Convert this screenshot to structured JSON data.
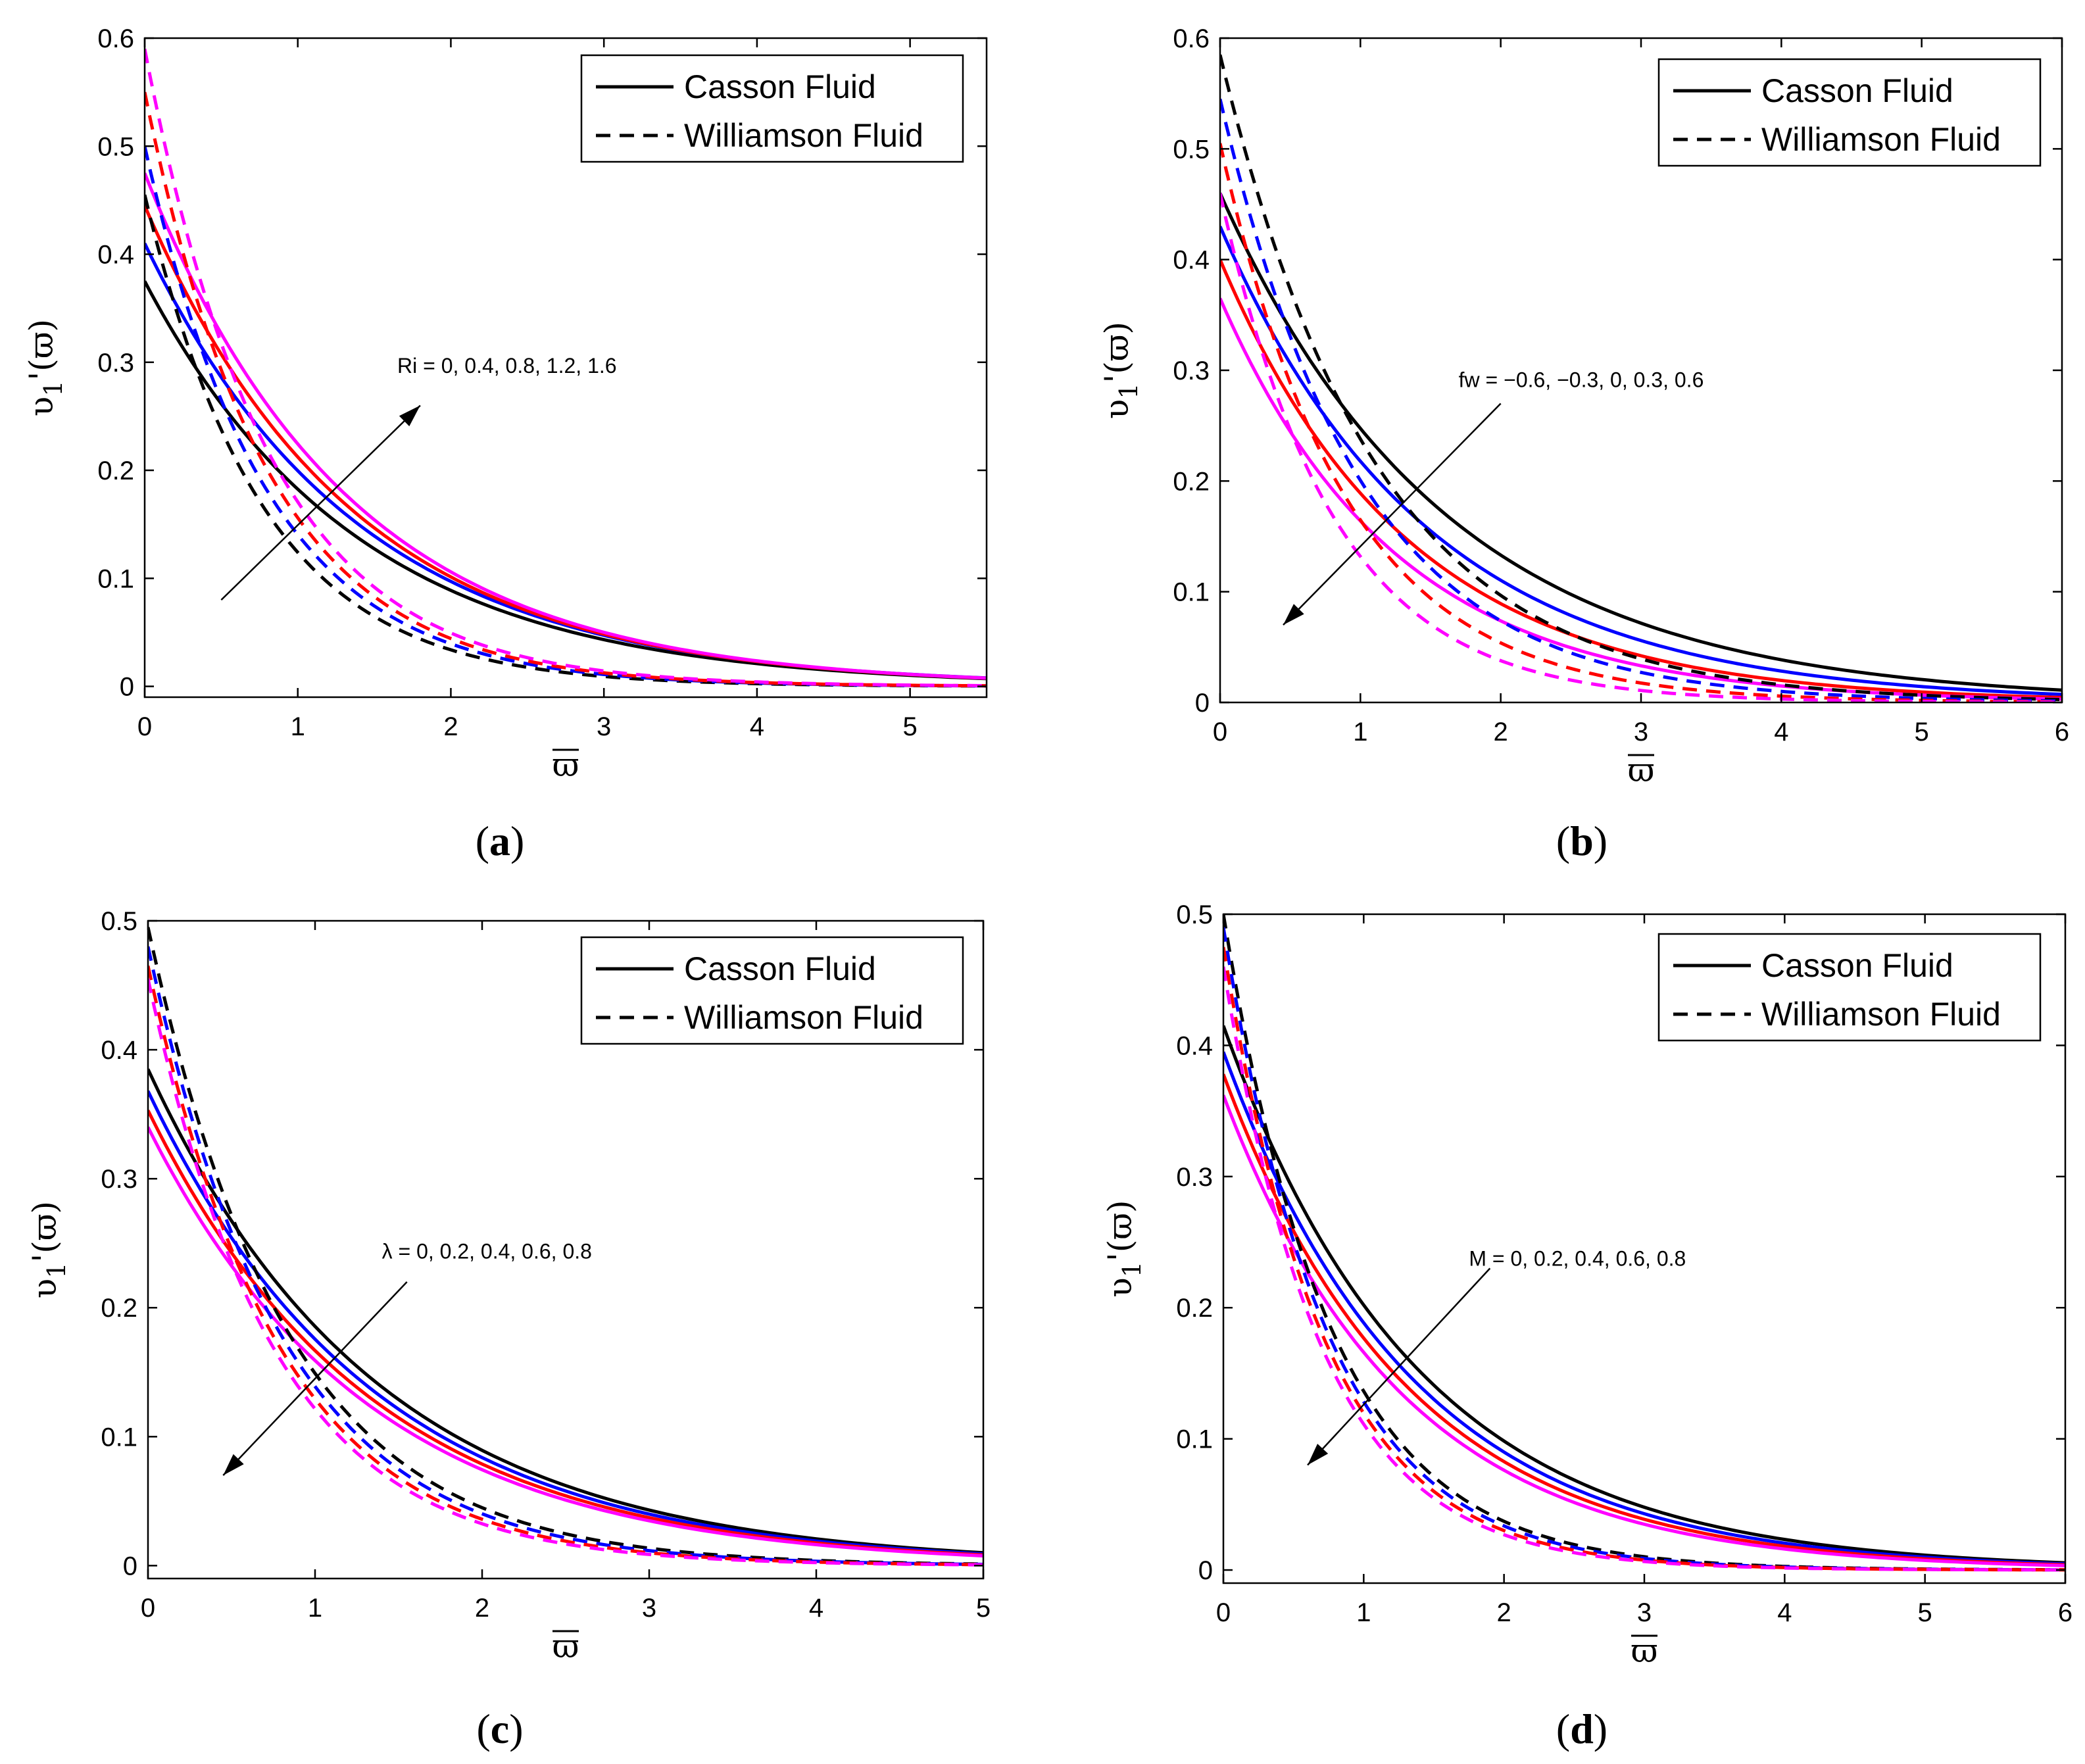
{
  "figure": {
    "colors": [
      "#000000",
      "#0000ff",
      "#ff0000",
      "#ff00ff"
    ],
    "legend_entries": [
      "Casson Fluid",
      "Williamson Fluid"
    ]
  },
  "chart_data": [
    {
      "type": "line",
      "panel_label": "a",
      "caption": "(a)",
      "xlabel": "ϖ",
      "ylabel": "υ1'(ϖ)",
      "xlim": [
        0,
        5.5
      ],
      "ylim": [
        -0.01,
        0.6
      ],
      "xticks": [
        0,
        1,
        2,
        3,
        4,
        5
      ],
      "yticks": [
        0,
        0.1,
        0.2,
        0.3,
        0.4,
        0.5,
        0.6
      ],
      "legend": {
        "position": "top-right",
        "entries": [
          "Casson Fluid",
          "Williamson Fluid"
        ]
      },
      "annotation": {
        "text": "Ri = 0, 0.4, 0.8, 1.2, 1.6",
        "arrow_direction": "up-right",
        "from": [
          0.5,
          0.08
        ],
        "to": [
          1.8,
          0.26
        ]
      },
      "parameter": "Ri",
      "parameter_values": [
        0,
        0.4,
        0.8,
        1.2,
        1.6
      ],
      "series": [
        {
          "name": "Casson Fluid, Ri = 0",
          "fluid": "Casson",
          "color": "#000000",
          "dashed": false,
          "v0": 0.375,
          "k": 0.72,
          "xmax": 5.5
        },
        {
          "name": "Casson Fluid, Ri = 0.4",
          "fluid": "Casson",
          "color": "#0000ff",
          "dashed": false,
          "v0": 0.41,
          "k": 0.72,
          "xmax": 5.5
        },
        {
          "name": "Casson Fluid, Ri = 0.8",
          "fluid": "Casson",
          "color": "#ff0000",
          "dashed": false,
          "v0": 0.445,
          "k": 0.74,
          "xmax": 5.5
        },
        {
          "name": "Casson Fluid, Ri = 1.2",
          "fluid": "Casson",
          "color": "#ff00ff",
          "dashed": false,
          "v0": 0.475,
          "k": 0.75,
          "xmax": 5.5
        },
        {
          "name": "Williamson Fluid, Ri = 0",
          "fluid": "Williamson",
          "color": "#000000",
          "dashed": true,
          "v0": 0.455,
          "k": 1.3,
          "xmax": 5.5
        },
        {
          "name": "Williamson Fluid, Ri = 0.4",
          "fluid": "Williamson",
          "color": "#0000ff",
          "dashed": true,
          "v0": 0.5,
          "k": 1.27,
          "xmax": 5.5
        },
        {
          "name": "Williamson Fluid, Ri = 0.8",
          "fluid": "Williamson",
          "color": "#ff0000",
          "dashed": true,
          "v0": 0.55,
          "k": 1.26,
          "xmax": 5.5
        },
        {
          "name": "Williamson Fluid, Ri = 1.2",
          "fluid": "Williamson",
          "color": "#ff00ff",
          "dashed": true,
          "v0": 0.59,
          "k": 1.24,
          "xmax": 5.5
        }
      ]
    },
    {
      "type": "line",
      "panel_label": "b",
      "caption": "(b)",
      "xlabel": "ϖ",
      "ylabel": "υ1'(ϖ)",
      "xlim": [
        0,
        6
      ],
      "ylim": [
        0,
        0.6
      ],
      "xticks": [
        0,
        1,
        2,
        3,
        4,
        5,
        6
      ],
      "yticks": [
        0,
        0.1,
        0.2,
        0.3,
        0.4,
        0.5,
        0.6
      ],
      "legend": {
        "position": "top-right",
        "entries": [
          "Casson Fluid",
          "Williamson Fluid"
        ]
      },
      "annotation": {
        "text": "fw = −0.6, −0.3, 0, 0.3, 0.6",
        "arrow_direction": "down-left",
        "from": [
          2.0,
          0.27
        ],
        "to": [
          0.45,
          0.07
        ]
      },
      "parameter": "fw",
      "parameter_values": [
        -0.6,
        -0.3,
        0,
        0.3,
        0.6
      ],
      "series": [
        {
          "name": "Casson Fluid, fw = -0.6",
          "fluid": "Casson",
          "color": "#000000",
          "dashed": false,
          "v0": 0.46,
          "k": 0.62,
          "xmax": 6
        },
        {
          "name": "Casson Fluid, fw = -0.3",
          "fluid": "Casson",
          "color": "#0000ff",
          "dashed": false,
          "v0": 0.43,
          "k": 0.68,
          "xmax": 6
        },
        {
          "name": "Casson Fluid, fw = 0",
          "fluid": "Casson",
          "color": "#ff0000",
          "dashed": false,
          "v0": 0.4,
          "k": 0.75,
          "xmax": 6
        },
        {
          "name": "Casson Fluid, fw = 0.3",
          "fluid": "Casson",
          "color": "#ff00ff",
          "dashed": false,
          "v0": 0.365,
          "k": 0.8,
          "xmax": 6
        },
        {
          "name": "Williamson Fluid, fw = -0.6",
          "fluid": "Williamson",
          "color": "#000000",
          "dashed": true,
          "v0": 0.585,
          "k": 0.9,
          "xmax": 6
        },
        {
          "name": "Williamson Fluid, fw = -0.3",
          "fluid": "Williamson",
          "color": "#0000ff",
          "dashed": true,
          "v0": 0.545,
          "k": 1.0,
          "xmax": 6
        },
        {
          "name": "Williamson Fluid, fw = 0",
          "fluid": "Williamson",
          "color": "#ff0000",
          "dashed": true,
          "v0": 0.505,
          "k": 1.12,
          "xmax": 6
        },
        {
          "name": "Williamson Fluid, fw = 0.3",
          "fluid": "Williamson",
          "color": "#ff00ff",
          "dashed": true,
          "v0": 0.46,
          "k": 1.25,
          "xmax": 6
        }
      ]
    },
    {
      "type": "line",
      "panel_label": "c",
      "caption": "(c)",
      "xlabel": "ϖ",
      "ylabel": "υ1'(ϖ)",
      "xlim": [
        0,
        5
      ],
      "ylim": [
        -0.01,
        0.5
      ],
      "xticks": [
        0,
        1,
        2,
        3,
        4,
        5
      ],
      "yticks": [
        0,
        0.1,
        0.2,
        0.3,
        0.4,
        0.5
      ],
      "legend": {
        "position": "top-right",
        "entries": [
          "Casson Fluid",
          "Williamson Fluid"
        ]
      },
      "annotation": {
        "text": "λ = 0, 0.2, 0.4, 0.6, 0.8",
        "arrow_direction": "down-left",
        "from": [
          1.55,
          0.22
        ],
        "to": [
          0.45,
          0.07
        ]
      },
      "parameter": "λ",
      "parameter_values": [
        0,
        0.2,
        0.4,
        0.6,
        0.8
      ],
      "series": [
        {
          "name": "Casson Fluid, λ = 0",
          "fluid": "Casson",
          "color": "#000000",
          "dashed": false,
          "v0": 0.385,
          "k": 0.73,
          "xmax": 5
        },
        {
          "name": "Casson Fluid, λ = 0.2",
          "fluid": "Casson",
          "color": "#0000ff",
          "dashed": false,
          "v0": 0.368,
          "k": 0.74,
          "xmax": 5
        },
        {
          "name": "Casson Fluid, λ = 0.4",
          "fluid": "Casson",
          "color": "#ff0000",
          "dashed": false,
          "v0": 0.353,
          "k": 0.75,
          "xmax": 5
        },
        {
          "name": "Casson Fluid, λ = 0.6",
          "fluid": "Casson",
          "color": "#ff00ff",
          "dashed": false,
          "v0": 0.34,
          "k": 0.76,
          "xmax": 5
        },
        {
          "name": "Williamson Fluid, λ = 0",
          "fluid": "Williamson",
          "color": "#000000",
          "dashed": true,
          "v0": 0.495,
          "k": 1.2,
          "xmax": 5
        },
        {
          "name": "Williamson Fluid, λ = 0.2",
          "fluid": "Williamson",
          "color": "#0000ff",
          "dashed": true,
          "v0": 0.48,
          "k": 1.24,
          "xmax": 5
        },
        {
          "name": "Williamson Fluid, λ = 0.4",
          "fluid": "Williamson",
          "color": "#ff0000",
          "dashed": true,
          "v0": 0.465,
          "k": 1.28,
          "xmax": 5
        },
        {
          "name": "Williamson Fluid, λ = 0.6",
          "fluid": "Williamson",
          "color": "#ff00ff",
          "dashed": true,
          "v0": 0.455,
          "k": 1.32,
          "xmax": 5
        }
      ]
    },
    {
      "type": "line",
      "panel_label": "d",
      "caption": "(d)",
      "xlabel": "ϖ",
      "ylabel": "υ1'(ϖ)",
      "xlim": [
        0,
        6
      ],
      "ylim": [
        -0.01,
        0.5
      ],
      "xticks": [
        0,
        1,
        2,
        3,
        4,
        5,
        6
      ],
      "yticks": [
        0,
        0.1,
        0.2,
        0.3,
        0.4,
        0.5
      ],
      "legend": {
        "position": "top-right",
        "entries": [
          "Casson Fluid",
          "Williamson Fluid"
        ]
      },
      "annotation": {
        "text": "M = 0, 0.2, 0.4, 0.6, 0.8",
        "arrow_direction": "down-left",
        "from": [
          1.9,
          0.23
        ],
        "to": [
          0.6,
          0.08
        ]
      },
      "parameter": "M",
      "parameter_values": [
        0,
        0.2,
        0.4,
        0.6,
        0.8
      ],
      "series": [
        {
          "name": "Casson Fluid, M = 0",
          "fluid": "Casson",
          "color": "#000000",
          "dashed": false,
          "v0": 0.415,
          "k": 0.72,
          "xmax": 6
        },
        {
          "name": "Casson Fluid, M = 0.2",
          "fluid": "Casson",
          "color": "#0000ff",
          "dashed": false,
          "v0": 0.395,
          "k": 0.74,
          "xmax": 6
        },
        {
          "name": "Casson Fluid, M = 0.4",
          "fluid": "Casson",
          "color": "#ff0000",
          "dashed": false,
          "v0": 0.378,
          "k": 0.76,
          "xmax": 6
        },
        {
          "name": "Casson Fluid, M = 0.6",
          "fluid": "Casson",
          "color": "#ff00ff",
          "dashed": false,
          "v0": 0.362,
          "k": 0.78,
          "xmax": 6
        },
        {
          "name": "Williamson Fluid, M = 0",
          "fluid": "Williamson",
          "color": "#000000",
          "dashed": true,
          "v0": 0.5,
          "k": 1.3,
          "xmax": 6
        },
        {
          "name": "Williamson Fluid, M = 0.2",
          "fluid": "Williamson",
          "color": "#0000ff",
          "dashed": true,
          "v0": 0.49,
          "k": 1.34,
          "xmax": 6
        },
        {
          "name": "Williamson Fluid, M = 0.4",
          "fluid": "Williamson",
          "color": "#ff0000",
          "dashed": true,
          "v0": 0.475,
          "k": 1.38,
          "xmax": 6
        },
        {
          "name": "Williamson Fluid, M = 0.6",
          "fluid": "Williamson",
          "color": "#ff00ff",
          "dashed": true,
          "v0": 0.46,
          "k": 1.42,
          "xmax": 6
        }
      ]
    }
  ]
}
